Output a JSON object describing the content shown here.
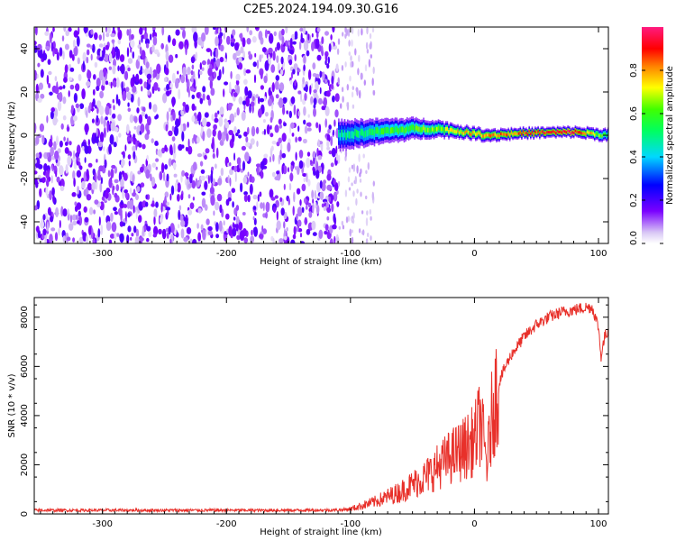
{
  "title": "C2E5.2024.194.09.30.G16",
  "colors": {
    "snr_line": "#e8302a",
    "spec_low": "#8a2be2",
    "spec_high": "#ff1a60"
  },
  "chart_data": [
    {
      "type": "heatmap",
      "name": "spectrogram",
      "xlabel": "Height of straight line (km)",
      "ylabel": "Frequency (Hz)",
      "xlim": [
        -355,
        108
      ],
      "ylim": [
        -50,
        50
      ],
      "xticks": [
        -300,
        -200,
        -100,
        0,
        100
      ],
      "yticks": [
        -40,
        -20,
        0,
        20,
        40
      ],
      "xtick_labels": [
        "-300",
        "-200",
        "-100",
        "0",
        "100"
      ],
      "ytick_labels": [
        "-40",
        "-20",
        "0",
        "20",
        "40"
      ],
      "colorbar": {
        "label": "Normalized spectral amplitude",
        "range": [
          0,
          1
        ],
        "ticks": [
          0.0,
          0.2,
          0.4,
          0.6,
          0.8
        ],
        "tick_labels": [
          "0.0",
          "0.2",
          "0.4",
          "0.6",
          "0.8"
        ],
        "colormap": "rainbow (white-violet-blue-cyan-green-yellow-red-magenta)"
      },
      "noise_region": {
        "x": [
          -355,
          -110
        ],
        "y": [
          -50,
          50
        ],
        "level": 0.1
      },
      "signal_band": [
        {
          "x": -110,
          "f_center": 0,
          "f_halfwidth": 7,
          "level": 0.45
        },
        {
          "x": -80,
          "f_center": 1.5,
          "f_halfwidth": 6,
          "level": 0.55
        },
        {
          "x": -50,
          "f_center": 3,
          "f_halfwidth": 5,
          "level": 0.6
        },
        {
          "x": -30,
          "f_center": 3,
          "f_halfwidth": 4,
          "level": 0.65
        },
        {
          "x": -10,
          "f_center": 1.5,
          "f_halfwidth": 3,
          "level": 0.75
        },
        {
          "x": 10,
          "f_center": 0,
          "f_halfwidth": 3,
          "level": 0.8
        },
        {
          "x": 40,
          "f_center": 1,
          "f_halfwidth": 2.5,
          "level": 0.85
        },
        {
          "x": 80,
          "f_center": 1.5,
          "f_halfwidth": 2.5,
          "level": 0.95
        },
        {
          "x": 108,
          "f_center": 0,
          "f_halfwidth": 3,
          "level": 0.5
        }
      ],
      "grid": false
    },
    {
      "type": "line",
      "name": "snr",
      "xlabel": "Height of straight line (km)",
      "ylabel": "SNR (10 * v/v)",
      "xlim": [
        -355,
        108
      ],
      "ylim": [
        0,
        8800
      ],
      "xticks": [
        -300,
        -200,
        -100,
        0,
        100
      ],
      "yticks": [
        0,
        2000,
        4000,
        6000,
        8000
      ],
      "xtick_labels": [
        "-300",
        "-200",
        "-100",
        "0",
        "100"
      ],
      "ytick_labels": [
        "0",
        "2000",
        "4000",
        "6000",
        "8000"
      ],
      "grid": false,
      "x": [
        -355,
        -300,
        -250,
        -200,
        -150,
        -110,
        -100,
        -90,
        -80,
        -70,
        -60,
        -50,
        -40,
        -30,
        -20,
        -10,
        0,
        5,
        10,
        15,
        20,
        25,
        30,
        40,
        50,
        60,
        70,
        80,
        90,
        95,
        100,
        102,
        105,
        108
      ],
      "y": [
        150,
        150,
        150,
        150,
        150,
        160,
        200,
        350,
        500,
        700,
        900,
        1200,
        1500,
        1900,
        2300,
        2600,
        3000,
        3800,
        2000,
        4400,
        5400,
        6000,
        6500,
        7200,
        7700,
        8000,
        8200,
        8300,
        8400,
        8400,
        7600,
        6400,
        7200,
        7500
      ]
    }
  ]
}
